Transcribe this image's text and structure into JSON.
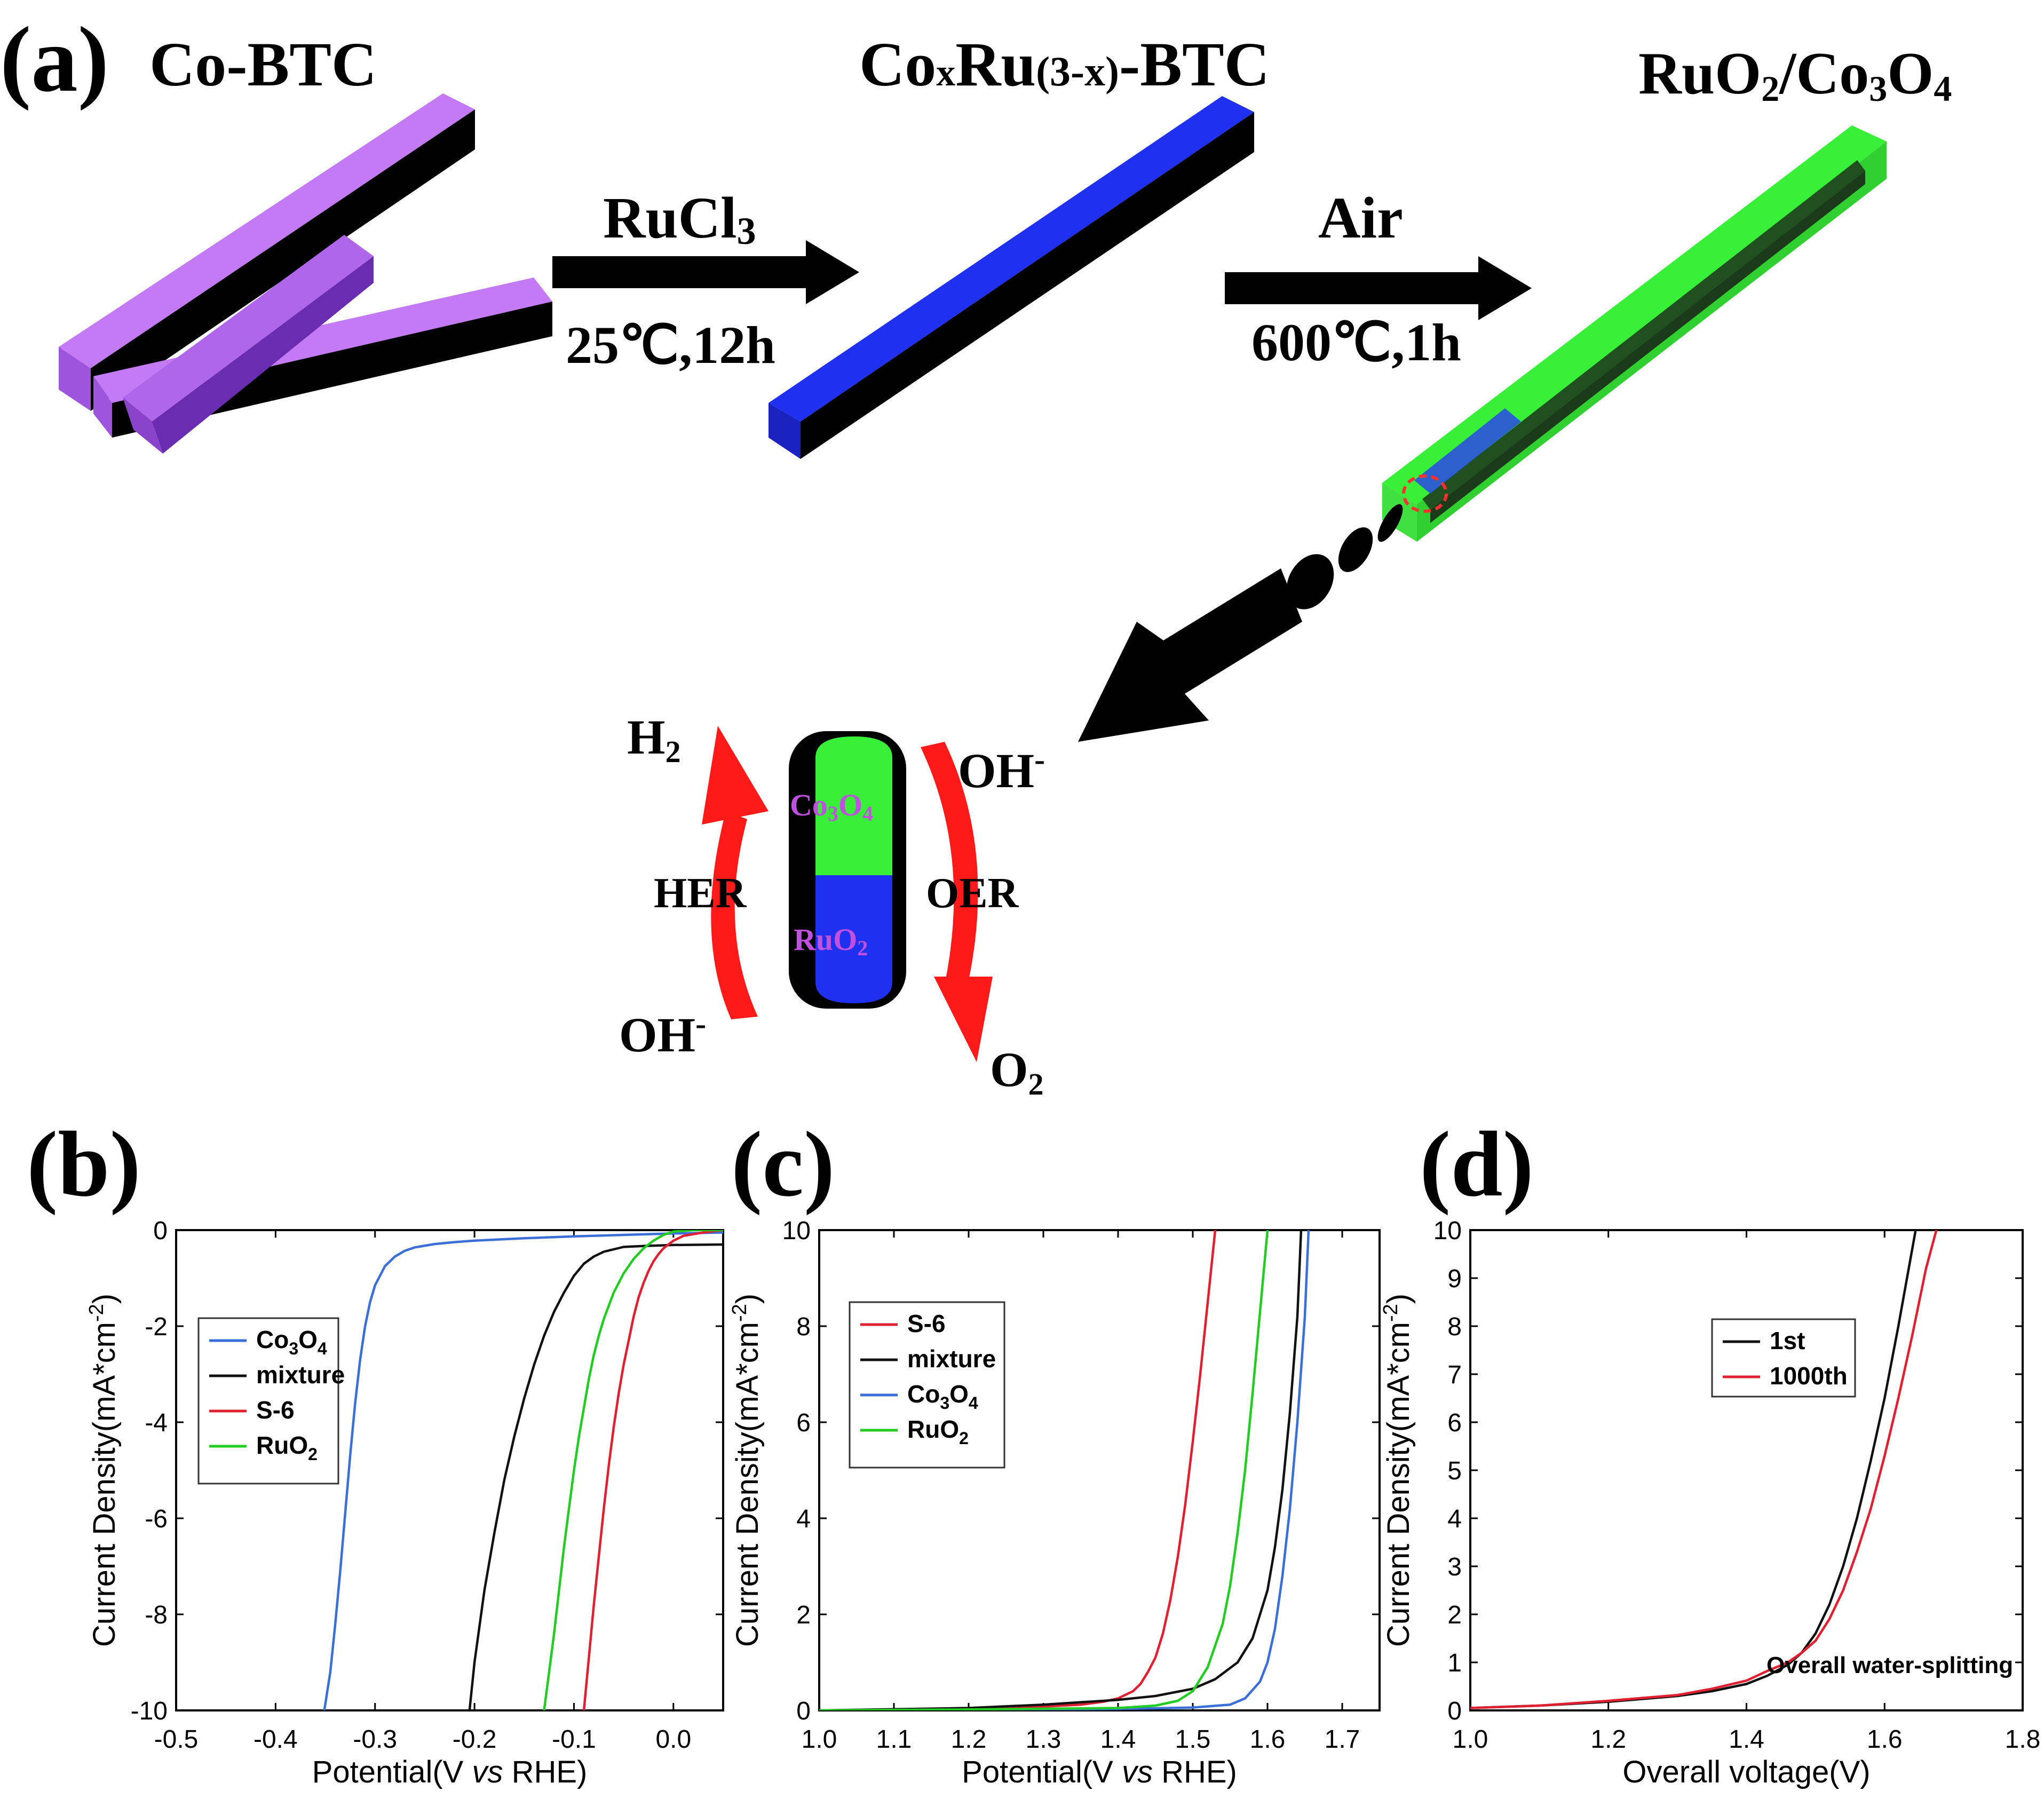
{
  "panel_a": {
    "label": "(a)",
    "title_left": "Co-BTC",
    "title_mid_main": "Co",
    "title_mid_x": "x",
    "title_mid_ru": "Ru",
    "title_mid_paren": "(3-x)",
    "title_mid_btc": "-BTC",
    "title_right_1": "RuO",
    "title_right_2": "2",
    "title_right_3": "/Co",
    "title_right_4": "3",
    "title_right_5": "O",
    "title_right_6": "4",
    "arrow1_top": "RuCl",
    "arrow1_top_sub": "3",
    "arrow1_bottom": "25℃,12h",
    "arrow2_top": "Air",
    "arrow2_bottom": "600℃,1h",
    "scheme": {
      "h2": "H",
      "h2_sub": "2",
      "oh_top": "OH",
      "oh_top_sup": "-",
      "her": "HER",
      "oer": "OER",
      "oh_bottom": "OH",
      "oh_bottom_sup": "-",
      "o2": "O",
      "o2_sub": "2",
      "co3o4": "Co",
      "co3o4_sub1": "3",
      "co3o4_o": "O",
      "co3o4_sub2": "4",
      "ruo2": "RuO",
      "ruo2_sub": "2"
    },
    "colors": {
      "purple": "#c070f0",
      "blue": "#2030ff",
      "green": "#30ff30",
      "red": "#ff2020",
      "particle_text": "#c050e0"
    }
  },
  "panel_labels": {
    "b": "(b)",
    "c": "(c)",
    "d": "(d)"
  },
  "chart_data": [
    {
      "type": "line",
      "panel": "(b)",
      "xlabel_pre": "Potential(V ",
      "xlabel_it": "vs",
      "xlabel_post": " RHE)",
      "ylabel": "Current Density(mA*cm",
      "ylabel_sup": "-2",
      "ylabel_close": ")",
      "xlim": [
        -0.5,
        0.05
      ],
      "ylim": [
        -10,
        0
      ],
      "x_ticks": [
        -0.5,
        -0.4,
        -0.3,
        -0.2,
        -0.1,
        0.0
      ],
      "x_tick_labels": [
        "-0.5",
        "-0.4",
        "-0.3",
        "-0.2",
        "-0.1",
        "0.0"
      ],
      "y_ticks": [
        0,
        -2,
        -4,
        -6,
        -8,
        -10
      ],
      "y_tick_labels": [
        "0",
        "-2",
        "-4",
        "-6",
        "-8",
        "-10"
      ],
      "legend_position": "center-left",
      "series": [
        {
          "name": "Co3O4",
          "legend_main": "Co",
          "legend_sub1": "3",
          "legend_o": "O",
          "legend_sub2": "4",
          "color": "#3a6fd8",
          "x": [
            -0.351,
            -0.345,
            -0.34,
            -0.335,
            -0.33,
            -0.325,
            -0.32,
            -0.315,
            -0.31,
            -0.305,
            -0.3,
            -0.29,
            -0.28,
            -0.27,
            -0.26,
            -0.24,
            -0.22,
            -0.2,
            -0.15,
            -0.1,
            -0.05,
            0.0,
            0.05
          ],
          "y": [
            -10,
            -9.2,
            -8.2,
            -7.1,
            -5.9,
            -4.7,
            -3.6,
            -2.7,
            -2.0,
            -1.5,
            -1.15,
            -0.75,
            -0.55,
            -0.43,
            -0.36,
            -0.29,
            -0.25,
            -0.22,
            -0.17,
            -0.13,
            -0.1,
            -0.07,
            -0.05
          ]
        },
        {
          "name": "mixture",
          "legend_main": "mixture",
          "color": "#111111",
          "x": [
            -0.205,
            -0.2,
            -0.19,
            -0.18,
            -0.17,
            -0.16,
            -0.15,
            -0.14,
            -0.13,
            -0.12,
            -0.11,
            -0.1,
            -0.09,
            -0.08,
            -0.07,
            -0.06,
            -0.05,
            -0.03,
            0.0,
            0.05
          ],
          "y": [
            -10,
            -9.0,
            -7.5,
            -6.3,
            -5.2,
            -4.3,
            -3.5,
            -2.8,
            -2.2,
            -1.7,
            -1.3,
            -0.95,
            -0.7,
            -0.55,
            -0.45,
            -0.4,
            -0.35,
            -0.33,
            -0.31,
            -0.3
          ]
        },
        {
          "name": "S-6",
          "legend_main": "S-6",
          "color": "#e02030",
          "x": [
            -0.09,
            -0.085,
            -0.08,
            -0.075,
            -0.07,
            -0.065,
            -0.06,
            -0.055,
            -0.05,
            -0.045,
            -0.04,
            -0.035,
            -0.03,
            -0.025,
            -0.02,
            -0.015,
            -0.01,
            0.0,
            0.01,
            0.03,
            0.05
          ],
          "y": [
            -10,
            -8.9,
            -7.8,
            -6.8,
            -5.8,
            -4.9,
            -4.1,
            -3.4,
            -2.8,
            -2.3,
            -1.8,
            -1.4,
            -1.1,
            -0.85,
            -0.65,
            -0.5,
            -0.38,
            -0.22,
            -0.12,
            -0.05,
            0.0
          ]
        },
        {
          "name": "RuO2",
          "legend_main": "RuO",
          "legend_sub1": "2",
          "color": "#22cc22",
          "x": [
            -0.13,
            -0.125,
            -0.12,
            -0.115,
            -0.11,
            -0.105,
            -0.1,
            -0.095,
            -0.09,
            -0.085,
            -0.08,
            -0.075,
            -0.07,
            -0.06,
            -0.05,
            -0.04,
            -0.03,
            -0.02,
            -0.01,
            0.0,
            0.02,
            0.05
          ],
          "y": [
            -10,
            -9.2,
            -8.4,
            -7.5,
            -6.6,
            -5.8,
            -5.0,
            -4.3,
            -3.7,
            -3.1,
            -2.6,
            -2.2,
            -1.85,
            -1.3,
            -0.9,
            -0.6,
            -0.38,
            -0.22,
            -0.1,
            -0.03,
            0.0,
            0.0
          ]
        }
      ]
    },
    {
      "type": "line",
      "panel": "(c)",
      "xlabel_pre": "Potential(V ",
      "xlabel_it": "vs",
      "xlabel_post": " RHE)",
      "ylabel": "Current Density(mA*cm",
      "ylabel_sup": "-2",
      "ylabel_close": ")",
      "xlim": [
        1.0,
        1.75
      ],
      "ylim": [
        0,
        10
      ],
      "x_ticks": [
        1.0,
        1.1,
        1.2,
        1.3,
        1.4,
        1.5,
        1.6,
        1.7
      ],
      "x_tick_labels": [
        "1.0",
        "1.1",
        "1.2",
        "1.3",
        "1.4",
        "1.5",
        "1.6",
        "1.7"
      ],
      "y_ticks": [
        0,
        2,
        4,
        6,
        8,
        10
      ],
      "y_tick_labels": [
        "0",
        "2",
        "4",
        "6",
        "8",
        "10"
      ],
      "legend_position": "upper-left",
      "series": [
        {
          "name": "S-6",
          "legend_main": "S-6",
          "color": "#e02030",
          "x": [
            1.0,
            1.1,
            1.2,
            1.3,
            1.35,
            1.38,
            1.4,
            1.42,
            1.43,
            1.44,
            1.45,
            1.46,
            1.47,
            1.48,
            1.49,
            1.5,
            1.51,
            1.52,
            1.53
          ],
          "y": [
            0.0,
            0.02,
            0.04,
            0.08,
            0.12,
            0.18,
            0.25,
            0.4,
            0.55,
            0.8,
            1.1,
            1.6,
            2.3,
            3.2,
            4.3,
            5.6,
            7.0,
            8.5,
            10
          ]
        },
        {
          "name": "mixture",
          "legend_main": "mixture",
          "color": "#111111",
          "x": [
            1.0,
            1.2,
            1.3,
            1.4,
            1.45,
            1.5,
            1.53,
            1.56,
            1.58,
            1.6,
            1.61,
            1.62,
            1.63,
            1.64,
            1.645
          ],
          "y": [
            0.0,
            0.05,
            0.12,
            0.22,
            0.3,
            0.45,
            0.65,
            1.0,
            1.5,
            2.5,
            3.4,
            4.6,
            6.2,
            8.2,
            10
          ]
        },
        {
          "name": "Co3O4",
          "legend_main": "Co",
          "legend_sub1": "3",
          "legend_o": "O",
          "legend_sub2": "4",
          "color": "#3a6fd8",
          "x": [
            1.0,
            1.2,
            1.4,
            1.5,
            1.55,
            1.57,
            1.59,
            1.6,
            1.61,
            1.62,
            1.63,
            1.64,
            1.65,
            1.655
          ],
          "y": [
            0.0,
            0.01,
            0.03,
            0.06,
            0.12,
            0.25,
            0.6,
            1.0,
            1.7,
            2.8,
            4.2,
            6.0,
            8.2,
            10
          ]
        },
        {
          "name": "RuO2",
          "legend_main": "RuO",
          "legend_sub1": "2",
          "color": "#22cc22",
          "x": [
            1.0,
            1.2,
            1.4,
            1.45,
            1.48,
            1.5,
            1.52,
            1.54,
            1.55,
            1.56,
            1.57,
            1.58,
            1.59,
            1.6
          ],
          "y": [
            0.0,
            0.02,
            0.05,
            0.1,
            0.2,
            0.4,
            0.9,
            1.8,
            2.6,
            3.7,
            5.0,
            6.6,
            8.3,
            10
          ]
        }
      ]
    },
    {
      "type": "line",
      "panel": "(d)",
      "xlabel_pre": "Overall voltage(V)",
      "xlabel_it": "",
      "xlabel_post": "",
      "ylabel": "Current Density(mA*cm",
      "ylabel_sup": "-2",
      "ylabel_close": ")",
      "xlim": [
        1.0,
        1.8
      ],
      "ylim": [
        0,
        10
      ],
      "x_ticks": [
        1.0,
        1.2,
        1.4,
        1.6,
        1.8
      ],
      "x_tick_labels": [
        "1.0",
        "1.2",
        "1.4",
        "1.6",
        "1.8"
      ],
      "y_ticks": [
        0,
        1,
        2,
        3,
        4,
        5,
        6,
        7,
        8,
        9,
        10
      ],
      "y_tick_labels": [
        "0",
        "1",
        "2",
        "3",
        "4",
        "5",
        "6",
        "7",
        "8",
        "9",
        "10"
      ],
      "legend_position": "upper-center",
      "annotation": "Overall water-splitting",
      "series": [
        {
          "name": "1st",
          "legend_main": "1st",
          "color": "#111111",
          "x": [
            1.0,
            1.1,
            1.2,
            1.3,
            1.35,
            1.4,
            1.43,
            1.46,
            1.48,
            1.5,
            1.52,
            1.54,
            1.56,
            1.58,
            1.6,
            1.62,
            1.64,
            1.645
          ],
          "y": [
            0.05,
            0.1,
            0.18,
            0.3,
            0.4,
            0.55,
            0.72,
            0.95,
            1.2,
            1.6,
            2.2,
            3.0,
            4.0,
            5.2,
            6.5,
            8.0,
            9.6,
            10
          ]
        },
        {
          "name": "1000th",
          "legend_main": "1000th",
          "color": "#e02030",
          "x": [
            1.0,
            1.1,
            1.2,
            1.3,
            1.35,
            1.4,
            1.43,
            1.46,
            1.48,
            1.5,
            1.52,
            1.54,
            1.56,
            1.58,
            1.6,
            1.62,
            1.64,
            1.66,
            1.675
          ],
          "y": [
            0.05,
            0.1,
            0.2,
            0.32,
            0.45,
            0.62,
            0.82,
            1.0,
            1.2,
            1.45,
            1.9,
            2.5,
            3.3,
            4.2,
            5.3,
            6.5,
            7.8,
            9.2,
            10
          ]
        }
      ]
    }
  ]
}
